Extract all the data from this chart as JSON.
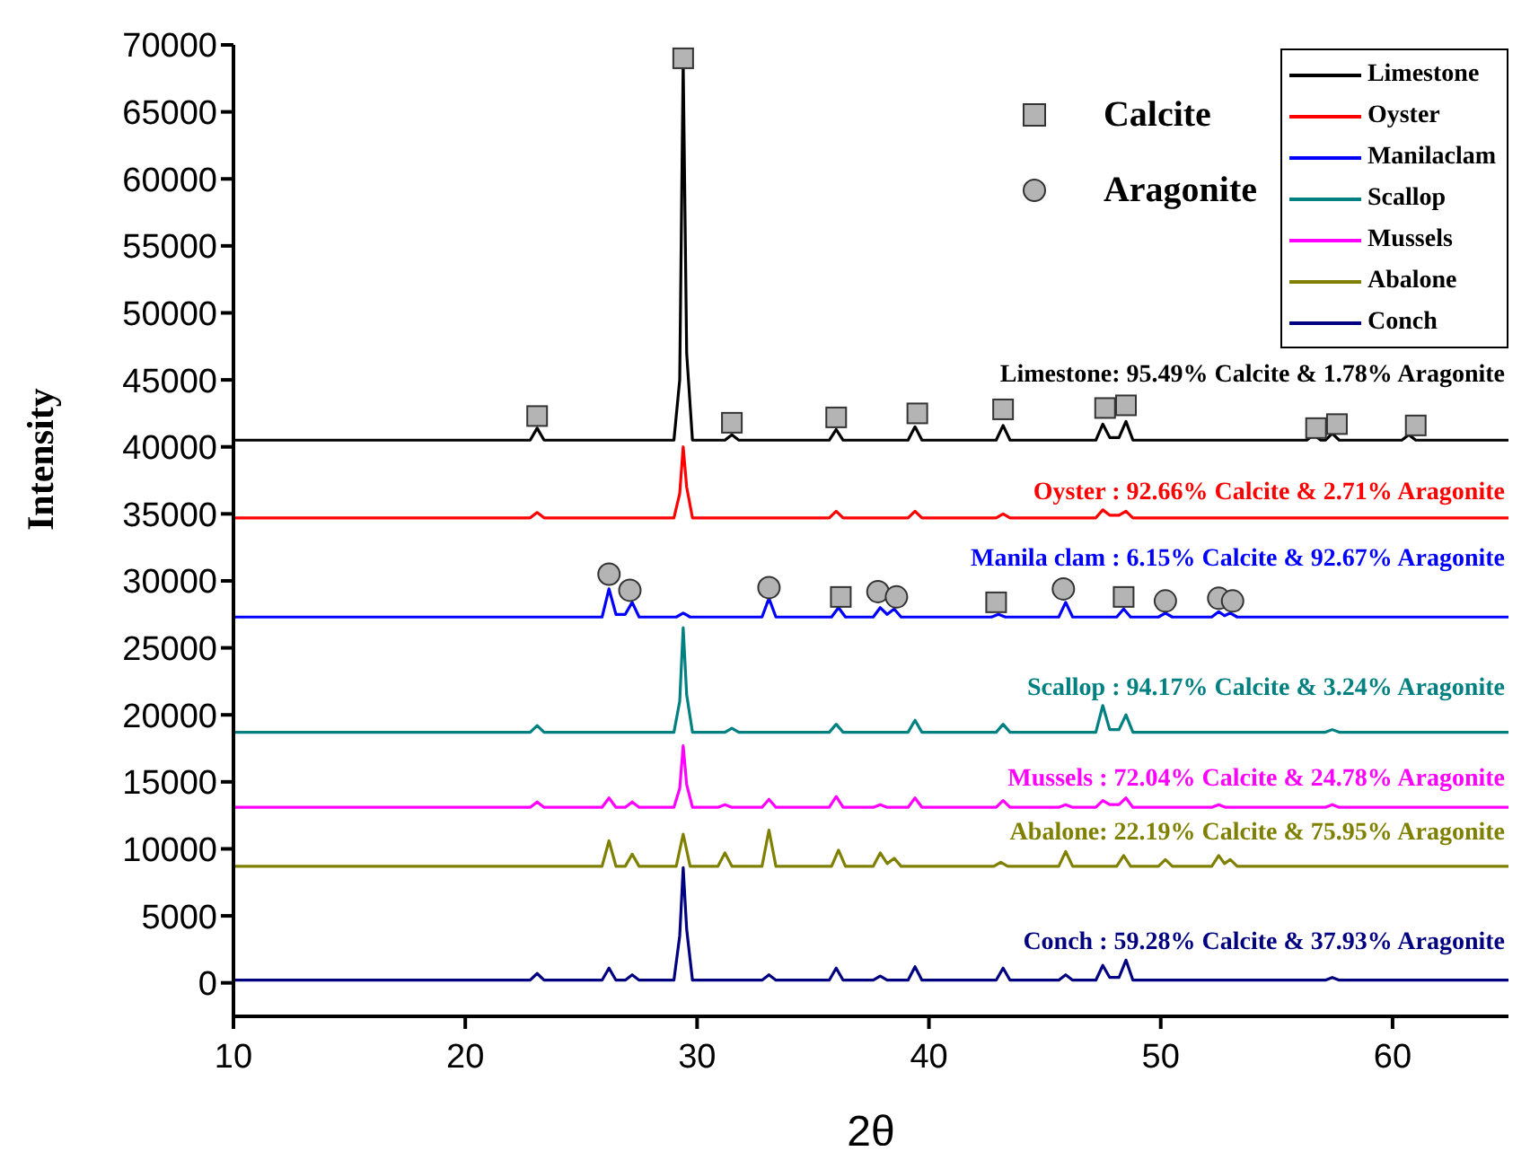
{
  "chart_data": {
    "type": "line",
    "xlabel": "2θ",
    "ylabel": "Intensity",
    "xlim": [
      10,
      65
    ],
    "xticks": [
      10,
      20,
      30,
      40,
      50,
      60
    ],
    "ylim": [
      -2500,
      70000
    ],
    "yticks": [
      0,
      5000,
      10000,
      15000,
      20000,
      25000,
      30000,
      35000,
      40000,
      45000,
      50000,
      55000,
      60000,
      65000,
      70000
    ],
    "legend": "top right",
    "series": [
      {
        "name": "Limestone",
        "color": "#000000",
        "x": [
          10,
          22.8,
          23.1,
          23.4,
          29.0,
          29.25,
          29.4,
          29.55,
          29.8,
          31.2,
          31.5,
          31.8,
          35.7,
          36.0,
          36.3,
          39.1,
          39.4,
          39.7,
          42.9,
          43.2,
          43.5,
          47.2,
          47.5,
          47.8,
          48.2,
          48.5,
          48.8,
          56.3,
          56.6,
          56.9,
          57.1,
          57.4,
          57.7,
          60.4,
          60.7,
          61.0,
          65
        ],
        "values": [
          40500,
          40500,
          41400,
          40500,
          40500,
          45000,
          68800,
          47000,
          40500,
          40500,
          40900,
          40500,
          40500,
          41300,
          40500,
          40500,
          41500,
          40500,
          40500,
          41600,
          40500,
          40500,
          41700,
          40700,
          40700,
          41900,
          40500,
          40500,
          40900,
          40500,
          40500,
          41000,
          40500,
          40500,
          40900,
          40500,
          40500
        ]
      },
      {
        "name": "Oyster",
        "color": "#ff0000",
        "x": [
          10,
          22.8,
          23.1,
          23.4,
          29.0,
          29.25,
          29.4,
          29.55,
          29.8,
          35.7,
          36.0,
          36.3,
          39.1,
          39.4,
          39.7,
          42.9,
          43.2,
          43.5,
          47.2,
          47.5,
          47.8,
          48.2,
          48.5,
          48.8,
          65
        ],
        "values": [
          34700,
          34700,
          35100,
          34700,
          34700,
          36500,
          40000,
          37000,
          34700,
          34700,
          35200,
          34700,
          34700,
          35200,
          34700,
          34700,
          35000,
          34700,
          34700,
          35300,
          34900,
          34900,
          35200,
          34700,
          34700
        ]
      },
      {
        "name": "Manilaclam",
        "color": "#0000ff",
        "x": [
          10,
          25.9,
          26.2,
          26.5,
          26.9,
          27.2,
          27.5,
          29.1,
          29.4,
          29.7,
          32.8,
          33.1,
          33.4,
          35.8,
          36.1,
          36.4,
          37.6,
          37.9,
          38.2,
          38.5,
          38.8,
          42.7,
          43.0,
          43.3,
          45.6,
          45.9,
          46.2,
          48.1,
          48.4,
          48.7,
          49.9,
          50.2,
          50.5,
          52.2,
          52.5,
          52.75,
          53.0,
          53.3,
          65
        ],
        "values": [
          27300,
          27300,
          29400,
          27500,
          27500,
          28400,
          27300,
          27300,
          27600,
          27300,
          27300,
          28700,
          27300,
          27300,
          28000,
          27300,
          27300,
          28000,
          27500,
          27900,
          27300,
          27300,
          27500,
          27300,
          27300,
          28400,
          27300,
          27300,
          27900,
          27300,
          27300,
          27600,
          27300,
          27300,
          27700,
          27400,
          27600,
          27300,
          27300
        ]
      },
      {
        "name": "Scallop",
        "color": "#008080",
        "x": [
          10,
          22.8,
          23.1,
          23.4,
          29.0,
          29.25,
          29.4,
          29.55,
          29.8,
          31.2,
          31.5,
          31.8,
          35.7,
          36.0,
          36.3,
          39.1,
          39.4,
          39.7,
          42.9,
          43.2,
          43.5,
          47.2,
          47.5,
          47.8,
          48.2,
          48.5,
          48.8,
          57.1,
          57.4,
          57.7,
          65
        ],
        "values": [
          18700,
          18700,
          19200,
          18700,
          18700,
          21000,
          26500,
          21500,
          18700,
          18700,
          19000,
          18700,
          18700,
          19300,
          18700,
          18700,
          19600,
          18700,
          18700,
          19300,
          18700,
          18700,
          20700,
          18900,
          18900,
          20000,
          18700,
          18700,
          18900,
          18700,
          18700
        ]
      },
      {
        "name": "Mussels",
        "color": "#ff00ff",
        "x": [
          10,
          22.8,
          23.1,
          23.4,
          25.9,
          26.2,
          26.5,
          26.9,
          27.2,
          27.5,
          29.0,
          29.25,
          29.4,
          29.55,
          29.8,
          30.9,
          31.2,
          31.5,
          32.8,
          33.1,
          33.4,
          35.7,
          36.0,
          36.3,
          37.6,
          37.9,
          38.2,
          39.1,
          39.4,
          39.7,
          42.9,
          43.2,
          43.5,
          45.6,
          45.9,
          46.2,
          47.2,
          47.5,
          47.8,
          48.2,
          48.5,
          48.8,
          52.2,
          52.5,
          52.8,
          57.1,
          57.4,
          57.7,
          65
        ],
        "values": [
          13100,
          13100,
          13500,
          13100,
          13100,
          13800,
          13100,
          13100,
          13500,
          13100,
          13100,
          14500,
          17700,
          14800,
          13100,
          13100,
          13300,
          13100,
          13100,
          13700,
          13100,
          13100,
          13900,
          13100,
          13100,
          13300,
          13100,
          13100,
          13800,
          13100,
          13100,
          13600,
          13100,
          13100,
          13300,
          13100,
          13100,
          13600,
          13300,
          13300,
          13800,
          13100,
          13100,
          13300,
          13100,
          13100,
          13300,
          13100,
          13100
        ]
      },
      {
        "name": "Abalone",
        "color": "#808000",
        "x": [
          10,
          25.9,
          26.2,
          26.5,
          26.9,
          27.2,
          27.5,
          29.1,
          29.4,
          29.7,
          30.9,
          31.2,
          31.5,
          32.8,
          33.1,
          33.4,
          35.8,
          36.1,
          36.4,
          37.6,
          37.9,
          38.2,
          38.5,
          38.8,
          42.8,
          43.1,
          43.4,
          45.6,
          45.9,
          46.2,
          48.1,
          48.4,
          48.7,
          49.9,
          50.2,
          50.5,
          52.2,
          52.5,
          52.75,
          53.0,
          53.3,
          65
        ],
        "values": [
          8700,
          8700,
          10600,
          8700,
          8700,
          9600,
          8700,
          8700,
          11100,
          8700,
          8700,
          9700,
          8700,
          8700,
          11400,
          8700,
          8700,
          9900,
          8700,
          8700,
          9700,
          8900,
          9300,
          8700,
          8700,
          9000,
          8700,
          8700,
          9800,
          8700,
          8700,
          9500,
          8700,
          8700,
          9200,
          8700,
          8700,
          9500,
          8900,
          9200,
          8700,
          8700
        ]
      },
      {
        "name": "Conch",
        "color": "#000080",
        "x": [
          10,
          22.8,
          23.1,
          23.4,
          25.9,
          26.2,
          26.5,
          26.9,
          27.2,
          27.5,
          29.0,
          29.25,
          29.4,
          29.55,
          29.8,
          32.8,
          33.1,
          33.4,
          35.7,
          36.0,
          36.3,
          37.6,
          37.9,
          38.2,
          39.1,
          39.4,
          39.7,
          42.9,
          43.2,
          43.5,
          45.6,
          45.9,
          46.2,
          47.2,
          47.5,
          47.8,
          48.2,
          48.5,
          48.8,
          57.1,
          57.4,
          57.7,
          65
        ],
        "values": [
          200,
          200,
          700,
          200,
          200,
          1100,
          200,
          200,
          600,
          200,
          200,
          3500,
          8600,
          4000,
          200,
          200,
          600,
          200,
          200,
          1100,
          200,
          200,
          500,
          200,
          200,
          1200,
          200,
          200,
          1100,
          200,
          200,
          600,
          200,
          200,
          1300,
          400,
          400,
          1700,
          200,
          200,
          400,
          200,
          200
        ]
      },
      {
        "name": "Calcite",
        "type": "scatter",
        "marker": "square",
        "color": "#b4b4b4",
        "x": [
          23.1,
          29.4,
          31.5,
          36.0,
          39.5,
          43.2,
          47.6,
          48.5,
          56.7,
          57.6,
          61.0,
          36.2,
          42.9,
          48.4
        ],
        "values": [
          42300,
          69000,
          41800,
          42200,
          42500,
          42800,
          42900,
          43100,
          41400,
          41700,
          41600,
          28800,
          28400,
          28800
        ]
      },
      {
        "name": "Aragonite",
        "type": "scatter",
        "marker": "circle",
        "color": "#b4b4b4",
        "x": [
          26.2,
          27.1,
          33.1,
          37.8,
          38.6,
          45.8,
          50.2,
          52.5,
          53.1
        ],
        "values": [
          30500,
          29300,
          29500,
          29200,
          28800,
          29400,
          28500,
          28700,
          28500
        ]
      }
    ],
    "annotations": [
      "Limestone: 95.49% Calcite & 1.78% Aragonite",
      "Oyster : 92.66% Calcite & 2.71% Aragonite",
      "Manila clam : 6.15% Calcite & 92.67% Aragonite",
      "Scallop : 94.17% Calcite & 3.24% Aragonite",
      "Mussels : 72.04% Calcite & 24.78% Aragonite",
      "Abalone: 22.19% Calcite & 75.95% Aragonite",
      "Conch : 59.28% Calcite & 37.93% Aragonite"
    ]
  }
}
